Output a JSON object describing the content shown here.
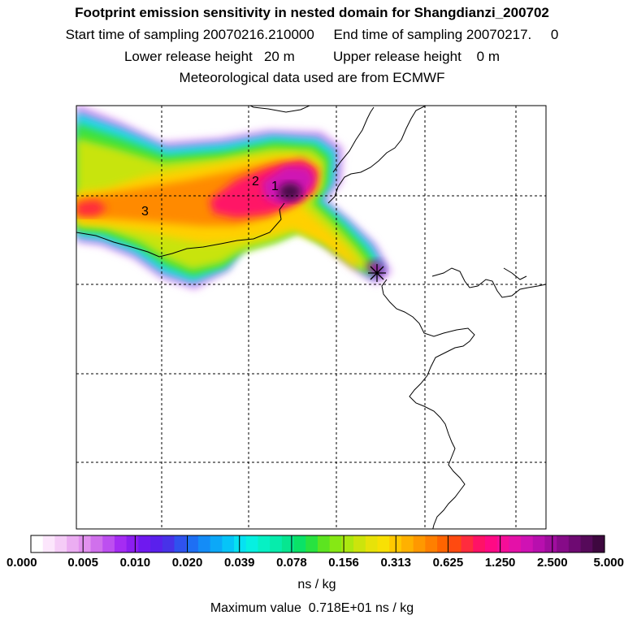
{
  "header": {
    "title": "Footprint emission sensitivity in nested domain for Shangdianzi_200702",
    "sampling_line": "Start time of sampling 20070216.210000     End time of sampling 20070217.     0",
    "release_line": "Lower release height   20 m          Upper release height    0 m",
    "met_line": "Meteorological data used are from ECMWF"
  },
  "labels": [
    {
      "text": "1"
    },
    {
      "text": "2"
    },
    {
      "text": "3"
    }
  ],
  "colorbar": {
    "ticks": [
      "0.000",
      "0.005",
      "0.010",
      "0.020",
      "0.039",
      "0.078",
      "0.156",
      "0.313",
      "0.625",
      "1.250",
      "2.500",
      "5.000"
    ],
    "colors": [
      "#ffffff",
      "#fce6fc",
      "#f5ccf7",
      "#ebadf2",
      "#e291ef",
      "#d070ec",
      "#bd4ff0",
      "#a52cf3",
      "#8c1ef0",
      "#6f19ef",
      "#5a20ec",
      "#4832e8",
      "#2f52ee",
      "#1e6ff4",
      "#148cf7",
      "#0ca8f8",
      "#06c4f8",
      "#06e1f2",
      "#06f0e1",
      "#06f0c4",
      "#06ecac",
      "#06e690",
      "#0ae267",
      "#28e240",
      "#5ce420",
      "#86e814",
      "#ace810",
      "#cce40c",
      "#e7e209",
      "#f8e004",
      "#ffc800",
      "#ffb100",
      "#ff9800",
      "#ff7f00",
      "#ff6400",
      "#ff4a10",
      "#ff2c3e",
      "#ff1266",
      "#ff0a84",
      "#f50e98",
      "#e411a8",
      "#cf12b4",
      "#b80fae",
      "#a00d9e",
      "#860b88",
      "#6e0a72",
      "#560a5a",
      "#3e083f"
    ],
    "units": "ns / kg"
  },
  "footer": {
    "max_value": "Maximum value  0.718E+01 ns / kg"
  },
  "colors": {
    "grid": "#000000",
    "coast": "#000000"
  }
}
